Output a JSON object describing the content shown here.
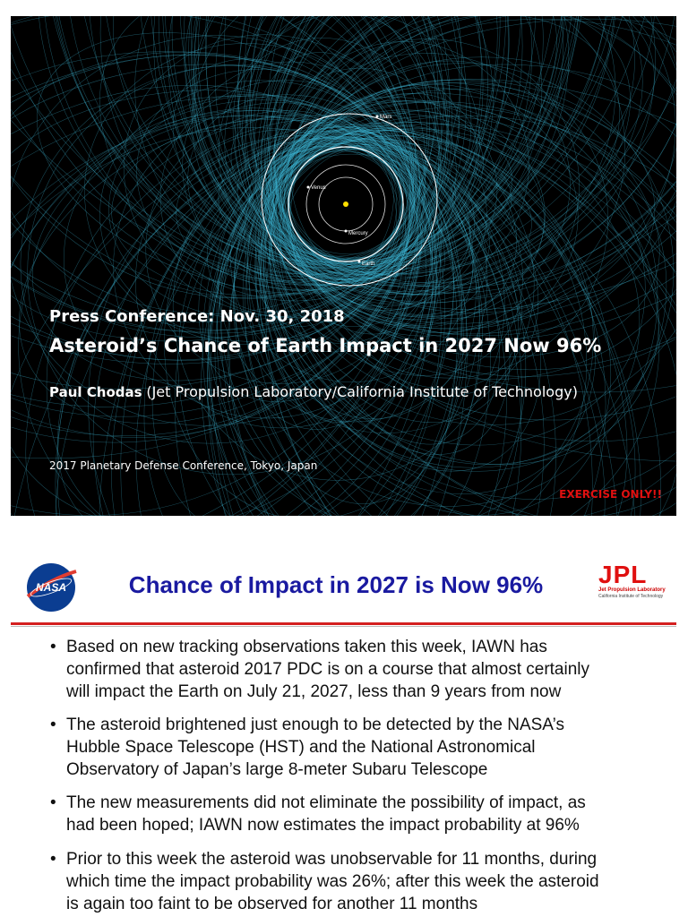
{
  "cover": {
    "planets": {
      "mars": "Mars",
      "venus": "Venus",
      "mercury": "Mercury",
      "earth": "Earth"
    },
    "kicker": "Press Conference: Nov. 30, 2018",
    "title": "Asteroid’s Chance of Earth Impact in 2027 Now 96%",
    "author": "Paul Chodas",
    "affiliation": "(Jet Propulsion Laboratory/California Institute of Technology)",
    "event": "2017 Planetary Defense Conference, Tokyo, Japan",
    "notice": "EXERCISE ONLY!!"
  },
  "slide": {
    "nasa_logo": "NASA",
    "title": "Chance of Impact in 2027 is Now 96%",
    "jpl_logo": {
      "mark": "JPL",
      "line1": "Jet Propulsion Laboratory",
      "line2": "California Institute of Technology"
    },
    "bullets": [
      [
        "Based on new tracking observations taken this week, IAWN has",
        "confirmed that asteroid 2017 PDC is on a course that almost certainly",
        "will impact the Earth on July 21, 2027, less than 9 years from now"
      ],
      [
        "The asteroid brightened just enough to be detected by the NASA’s",
        "Hubble Space Telescope (HST) and the National Astronomical",
        "Observatory of Japan’s large 8-meter Subaru Telescope"
      ],
      [
        "The new measurements did not eliminate the possibility of impact, as",
        "had been hoped; IAWN now estimates the impact probability at 96%"
      ],
      [
        "Prior to this week the asteroid was unobservable for 11 months, during",
        "which time the impact probability was 26%; after this week the asteroid",
        "is again too faint to be observed for another 11 months"
      ]
    ]
  }
}
